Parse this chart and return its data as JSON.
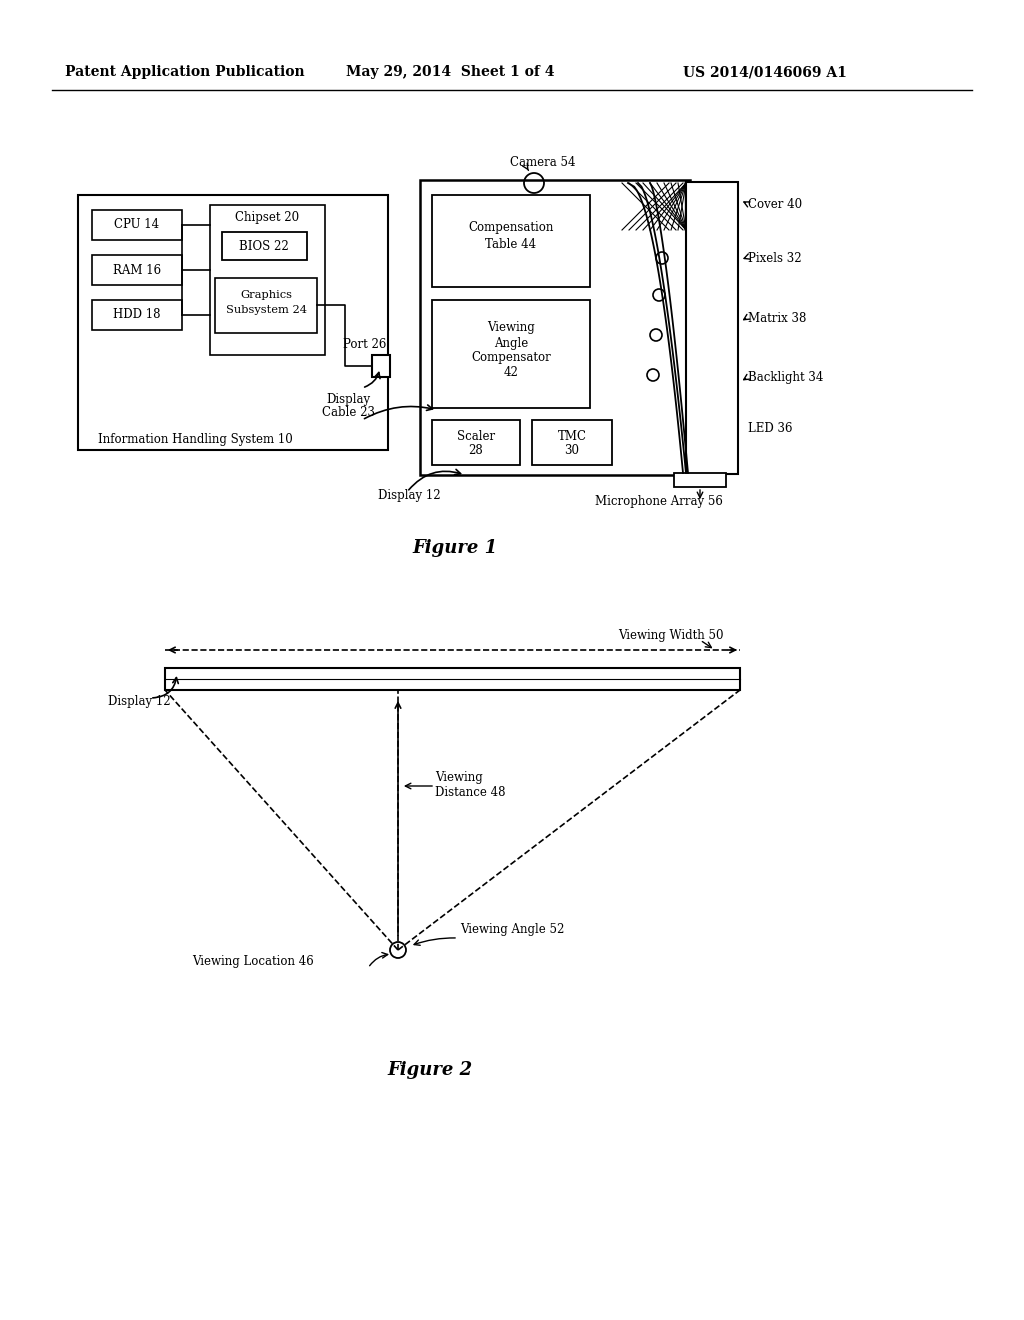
{
  "header_left": "Patent Application Publication",
  "header_mid": "May 29, 2014  Sheet 1 of 4",
  "header_right": "US 2014/0146069 A1",
  "fig1_caption": "Figure 1",
  "fig2_caption": "Figure 2",
  "bg_color": "#ffffff",
  "text_color": "#000000"
}
